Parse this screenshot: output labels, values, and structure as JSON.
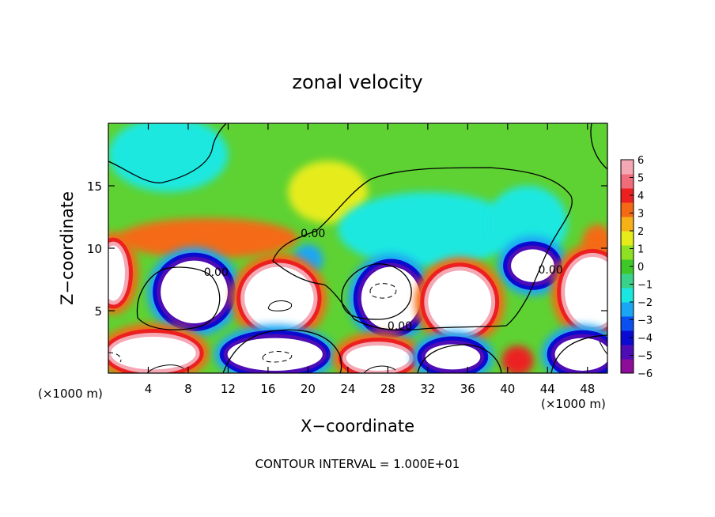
{
  "chart_data": {
    "type": "heatmap",
    "title": "zonal velocity",
    "xlabel": "X−coordinate",
    "ylabel": "Z−coordinate",
    "x_unit_left": "(×1000 m)",
    "x_unit_right": "(×1000 m)",
    "footer": "CONTOUR INTERVAL = 1.000E+01",
    "xlim": [
      0,
      50
    ],
    "ylim": [
      0,
      20
    ],
    "x_ticks": [
      4,
      8,
      12,
      16,
      20,
      24,
      28,
      32,
      36,
      40,
      44,
      48
    ],
    "x_tick_labels": [
      "4",
      "8",
      "12",
      "16",
      "20",
      "24",
      "28",
      "32",
      "36",
      "40",
      "44",
      "48"
    ],
    "y_ticks": [
      5,
      10,
      15
    ],
    "y_tick_labels": [
      "5",
      "10",
      "15"
    ],
    "contour_labels": [
      {
        "text": "0.00",
        "x": 20.5,
        "y": 11.2
      },
      {
        "text": "0.00",
        "x": 10.8,
        "y": 8.1
      },
      {
        "text": "0.00",
        "x": 29.2,
        "y": 3.8
      },
      {
        "text": "0.00",
        "x": 44.3,
        "y": 8.3
      }
    ],
    "colorbar": {
      "min": -6,
      "max": 6,
      "tick_labels": [
        "6",
        "5",
        "4",
        "3",
        "2",
        "1",
        "0",
        "−1",
        "−2",
        "−3",
        "−4",
        "−5",
        "−6"
      ],
      "colors": [
        "#8e0c9a",
        "#4d0cb5",
        "#0a0ad0",
        "#0a50f0",
        "#1aa6f5",
        "#1ae8e0",
        "#3ad28a",
        "#3ec828",
        "#8ee022",
        "#e6ec1a",
        "#f6b018",
        "#f46a14",
        "#ec2020",
        "#f06c7a",
        "#f4a8b4"
      ]
    },
    "field_blobs": [
      {
        "x": 6,
        "y": 17.5,
        "rx": 6,
        "ry": 3,
        "value": -2
      },
      {
        "x": 22,
        "y": 14.5,
        "rx": 4,
        "ry": 2.5,
        "value": 1.6
      },
      {
        "x": 10,
        "y": 10.8,
        "rx": 9,
        "ry": 1.6,
        "value": 3
      },
      {
        "x": 32,
        "y": 11.5,
        "rx": 9,
        "ry": 3,
        "value": -1.6
      },
      {
        "x": 42,
        "y": 12,
        "rx": 4,
        "ry": 3,
        "value": -1.6
      },
      {
        "x": 20,
        "y": 9.1,
        "rx": 1.5,
        "ry": 1.2,
        "value": -3
      },
      {
        "x": 42.5,
        "y": 8.6,
        "rx": 2.4,
        "ry": 1.5,
        "value": -5
      },
      {
        "x": 49,
        "y": 10.5,
        "rx": 1.5,
        "ry": 1.4,
        "value": 3.5
      },
      {
        "x": 0.5,
        "y": 8.0,
        "rx": 1.4,
        "ry": 2.4,
        "value": 5
      },
      {
        "x": 8.6,
        "y": 6.5,
        "rx": 3.6,
        "ry": 2.7,
        "value": -5
      },
      {
        "x": 17.1,
        "y": 6.0,
        "rx": 3.7,
        "ry": 2.7,
        "value": 5
      },
      {
        "x": 28.3,
        "y": 6.0,
        "rx": 3.2,
        "ry": 2.7,
        "value": -5
      },
      {
        "x": 35.2,
        "y": 5.7,
        "rx": 3.4,
        "ry": 2.7,
        "value": 5
      },
      {
        "x": 48.5,
        "y": 6.5,
        "rx": 3,
        "ry": 3,
        "value": 5
      },
      {
        "x": 4.5,
        "y": 1.6,
        "rx": 4.5,
        "ry": 1.5,
        "value": 5
      },
      {
        "x": 16.7,
        "y": 1.5,
        "rx": 5,
        "ry": 1.5,
        "value": -5
      },
      {
        "x": 27,
        "y": 1.2,
        "rx": 3.4,
        "ry": 1.2,
        "value": 5
      },
      {
        "x": 34.5,
        "y": 1.3,
        "rx": 3,
        "ry": 1.2,
        "value": -5
      },
      {
        "x": 41,
        "y": 1.0,
        "rx": 1.6,
        "ry": 1.2,
        "value": 4
      },
      {
        "x": 47.5,
        "y": 1.5,
        "rx": 3,
        "ry": 1.5,
        "value": -5
      }
    ]
  }
}
